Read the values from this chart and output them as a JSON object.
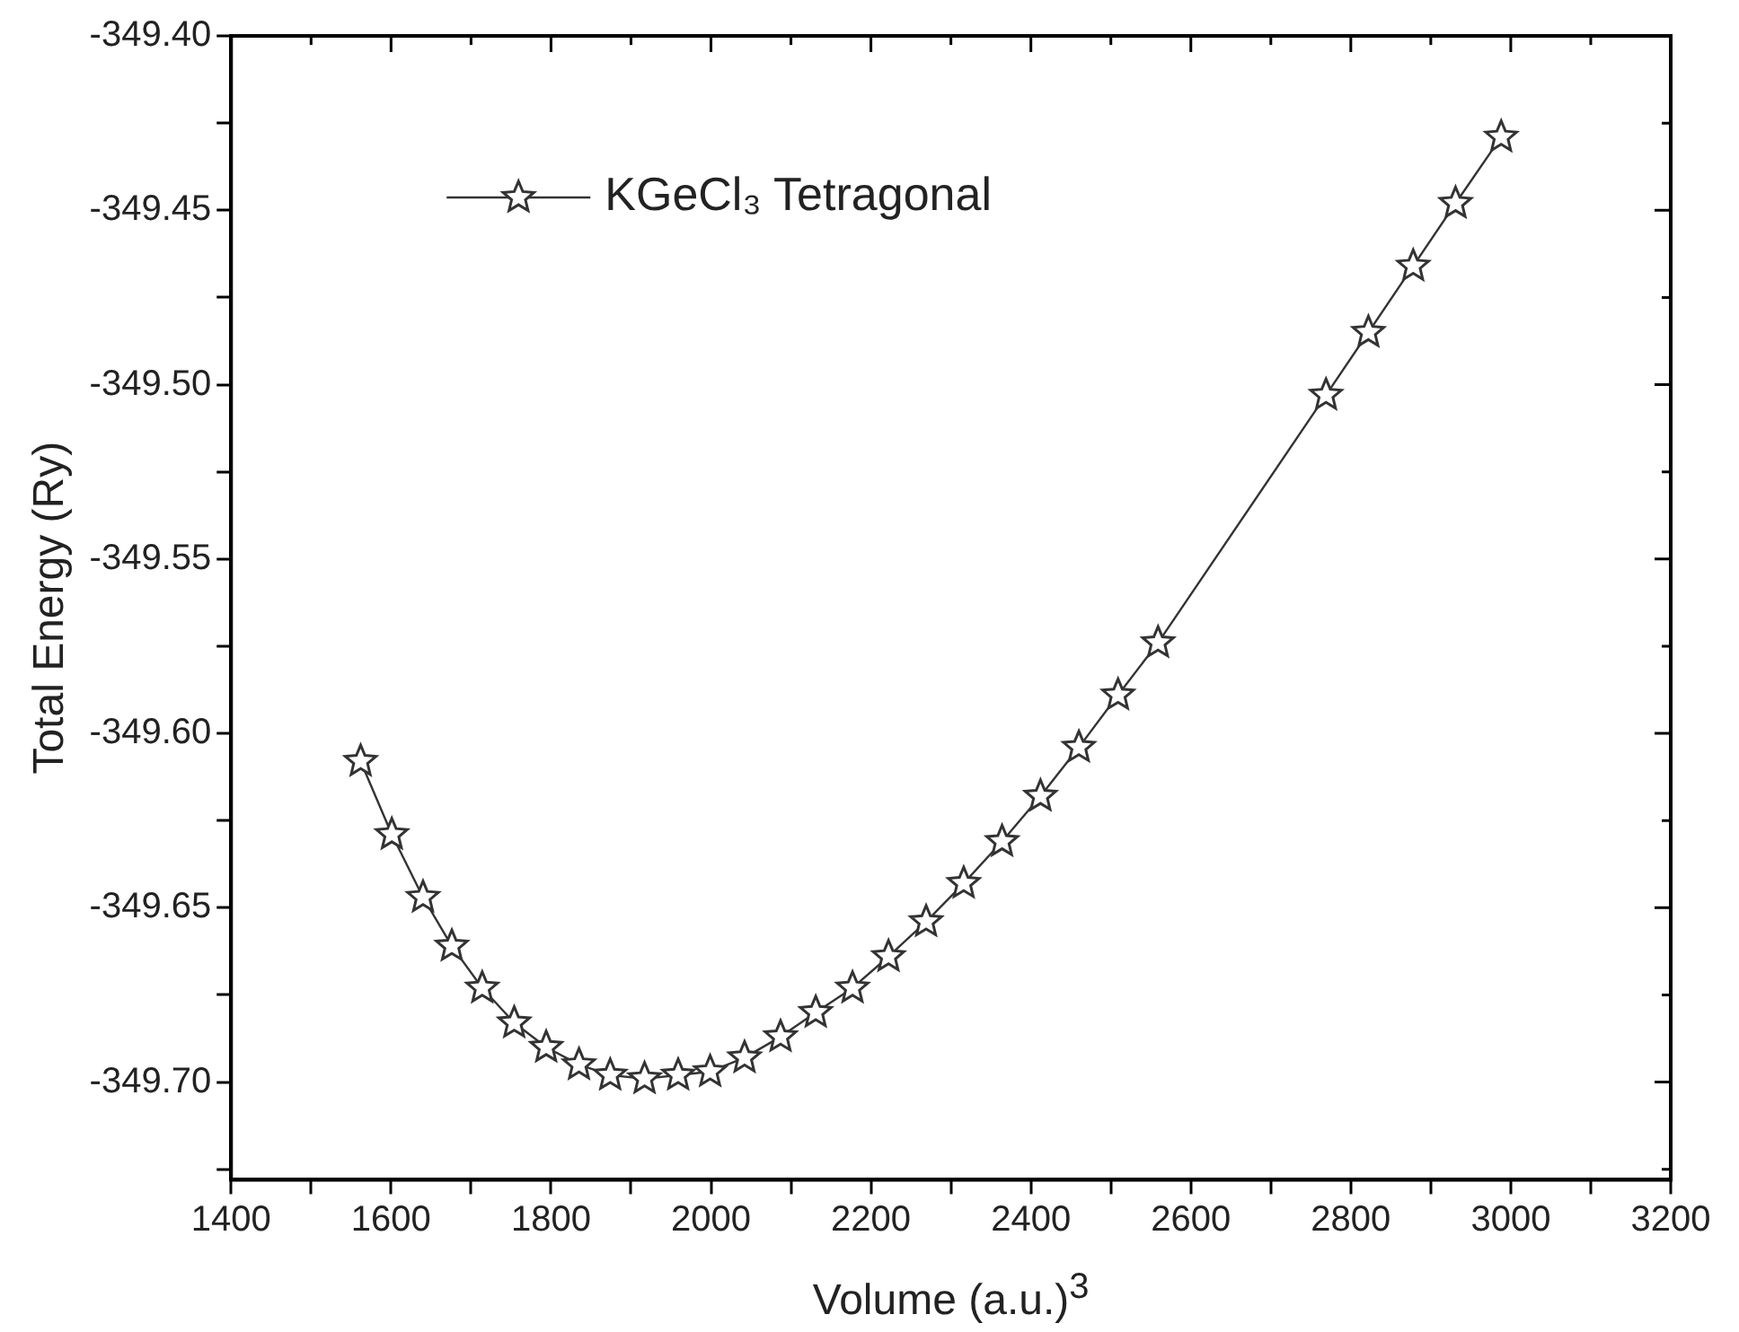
{
  "chart_data": {
    "type": "line",
    "xlabel": "Volume (a.u.)$^{3}$",
    "ylabel": "Total Energy (Ry)",
    "series": [
      {
        "name": "KGeCl₃ Tetragonal",
        "color": "#333333",
        "x": [
          1562,
          1601,
          1640,
          1676,
          1714,
          1754,
          1794,
          1835,
          1874,
          1917,
          1959,
          1999,
          2042,
          2087,
          2131,
          2177,
          2222,
          2269,
          2316,
          2364,
          2412,
          2460,
          2509,
          2559,
          2769,
          2822,
          2878,
          2931,
          2988
        ],
        "values": [
          -349.608,
          -349.629,
          -349.647,
          -349.661,
          -349.673,
          -349.683,
          -349.69,
          -349.695,
          -349.698,
          -349.699,
          -349.698,
          -349.697,
          -349.693,
          -349.687,
          -349.68,
          -349.673,
          -349.664,
          -349.654,
          -349.643,
          -349.631,
          -349.618,
          -349.604,
          -349.589,
          -349.574,
          -349.503,
          -349.485,
          -349.466,
          -349.448,
          -349.429
        ]
      }
    ],
    "xlim": [
      1400,
      3200
    ],
    "xticks": [
      1400,
      {
        "value": 1500,
        "label": null
      },
      1600,
      {
        "value": 1700,
        "label": null
      },
      1800,
      {
        "value": 1900,
        "label": null
      },
      2000,
      {
        "value": 2100,
        "label": null
      },
      2200,
      {
        "value": 2300,
        "label": null
      },
      2400,
      {
        "value": 2500,
        "label": null
      },
      2600,
      {
        "value": 2700,
        "label": null
      },
      2800,
      {
        "value": 2900,
        "label": null
      },
      3000,
      {
        "value": 3100,
        "label": null
      },
      3200
    ],
    "ylim": [
      -349.728,
      -349.4
    ],
    "yticks": [
      {
        "value": -349.725,
        "label": null
      },
      {
        "value": -349.7,
        "label": "-349.70"
      },
      {
        "value": -349.675,
        "label": null
      },
      {
        "value": -349.65,
        "label": "-349.65"
      },
      {
        "value": -349.625,
        "label": null
      },
      {
        "value": -349.6,
        "label": "-349.60"
      },
      {
        "value": -349.575,
        "label": null
      },
      {
        "value": -349.55,
        "label": "-349.55"
      },
      {
        "value": -349.525,
        "label": null
      },
      {
        "value": -349.5,
        "label": "-349.50"
      },
      {
        "value": -349.475,
        "label": null
      },
      {
        "value": -349.45,
        "label": "-349.45"
      },
      {
        "value": -349.425,
        "label": null
      },
      {
        "value": -349.4,
        "label": "-349.40"
      }
    ],
    "grid": false,
    "legend": "top left",
    "marker": "star",
    "line_style": "solid"
  }
}
